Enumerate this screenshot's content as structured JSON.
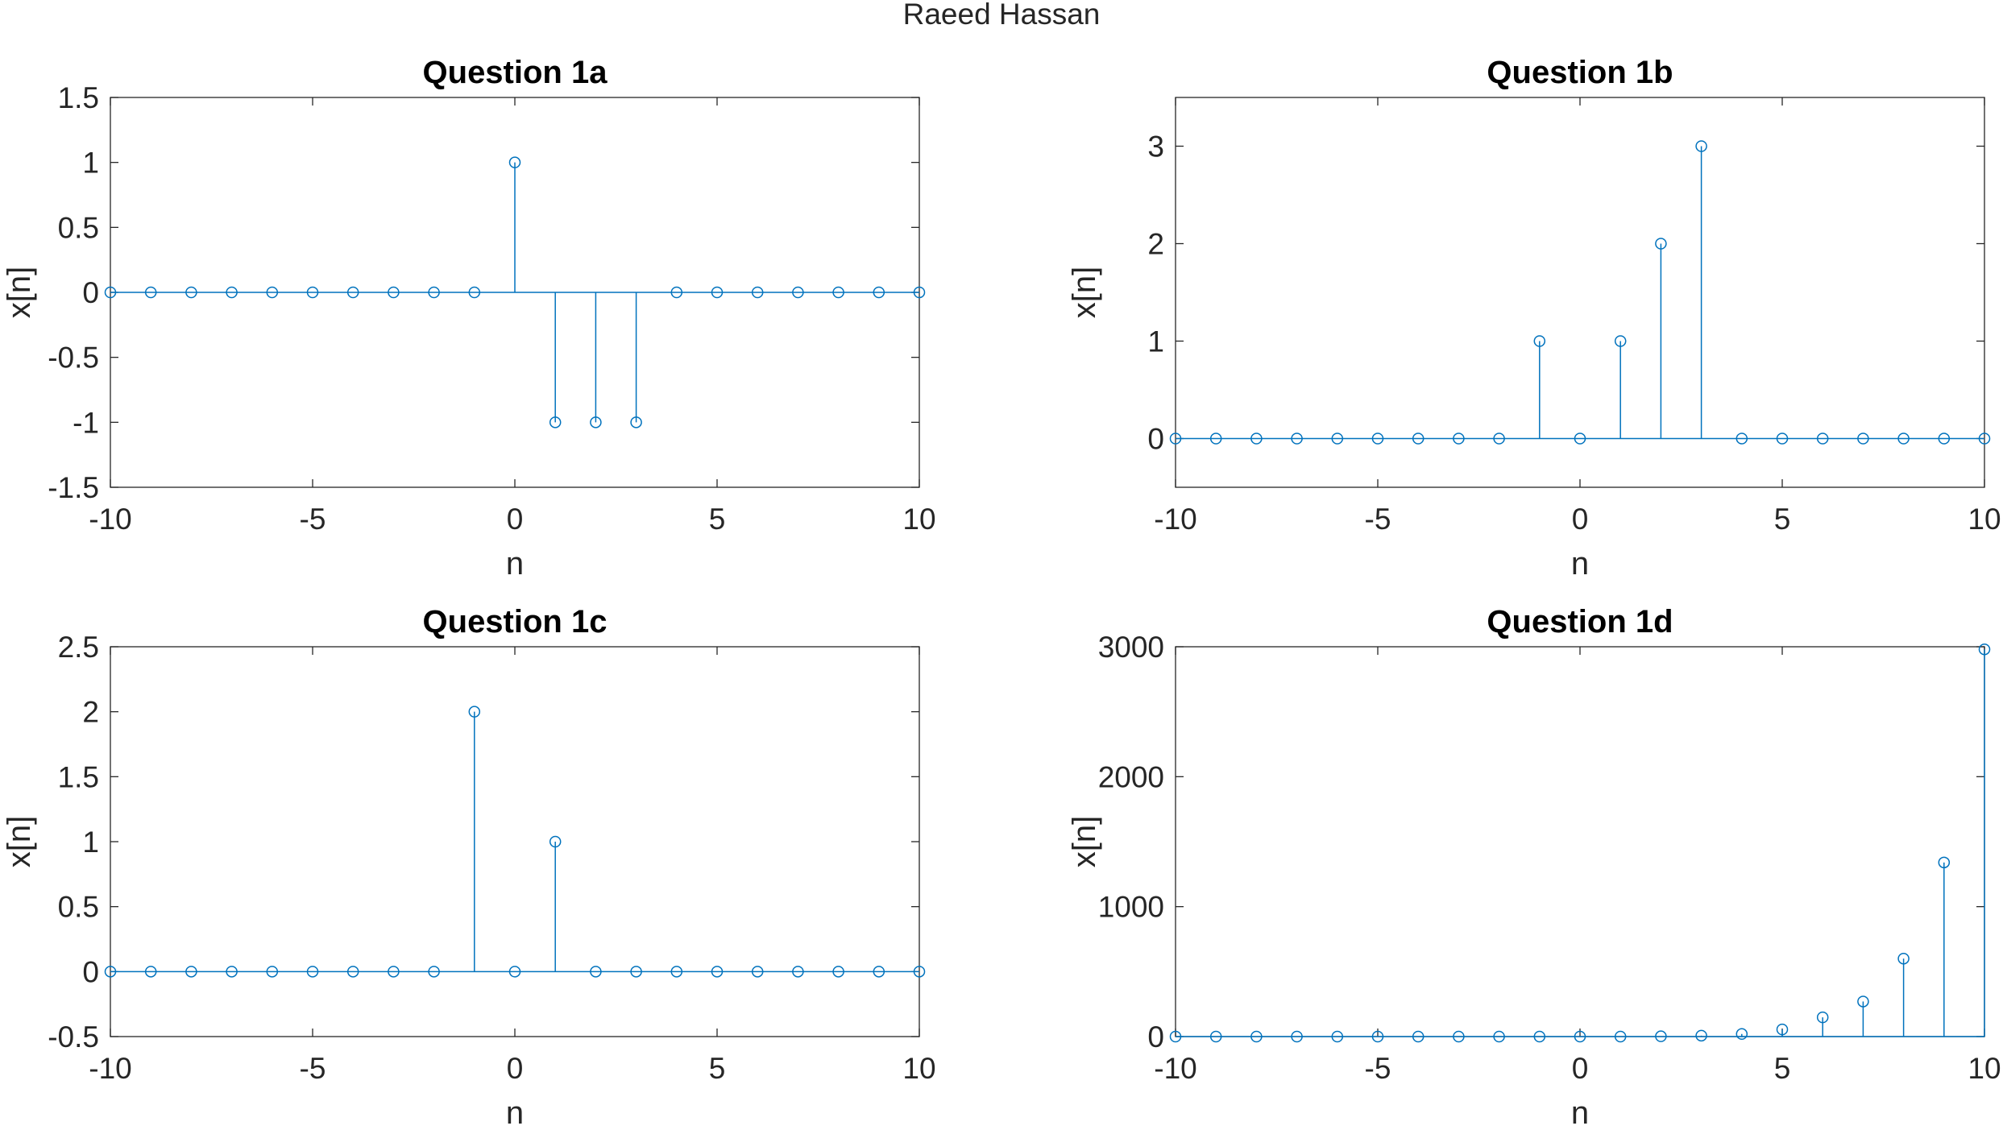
{
  "figure": {
    "title": "Raeed Hassan"
  },
  "chart_data": [
    {
      "type": "stem",
      "title": "Question 1a",
      "xlabel": "n",
      "ylabel": "x[n]",
      "xlim": [
        -10,
        10
      ],
      "ylim": [
        -1.5,
        1.5
      ],
      "xticks": [
        -10,
        -5,
        0,
        5,
        10
      ],
      "yticks": [
        -1.5,
        -1,
        -0.5,
        0,
        0.5,
        1,
        1.5
      ],
      "grid": false,
      "color": "#0072BD",
      "series": [
        {
          "x": [
            -10,
            -9,
            -8,
            -7,
            -6,
            -5,
            -4,
            -3,
            -2,
            -1,
            0,
            1,
            2,
            3,
            4,
            5,
            6,
            7,
            8,
            9,
            10
          ],
          "y": [
            0,
            0,
            0,
            0,
            0,
            0,
            0,
            0,
            0,
            0,
            1,
            -1,
            -1,
            -1,
            0,
            0,
            0,
            0,
            0,
            0,
            0
          ]
        }
      ]
    },
    {
      "type": "stem",
      "title": "Question 1b",
      "xlabel": "n",
      "ylabel": "x[n]",
      "xlim": [
        -10,
        10
      ],
      "ylim": [
        -0.5,
        3.5
      ],
      "xticks": [
        -10,
        -5,
        0,
        5,
        10
      ],
      "yticks": [
        0,
        1,
        2,
        3
      ],
      "grid": false,
      "color": "#0072BD",
      "series": [
        {
          "x": [
            -10,
            -9,
            -8,
            -7,
            -6,
            -5,
            -4,
            -3,
            -2,
            -1,
            0,
            1,
            2,
            3,
            4,
            5,
            6,
            7,
            8,
            9,
            10
          ],
          "y": [
            0,
            0,
            0,
            0,
            0,
            0,
            0,
            0,
            0,
            1,
            0,
            1,
            2,
            3,
            0,
            0,
            0,
            0,
            0,
            0,
            0
          ]
        }
      ]
    },
    {
      "type": "stem",
      "title": "Question 1c",
      "xlabel": "n",
      "ylabel": "x[n]",
      "xlim": [
        -10,
        10
      ],
      "ylim": [
        -0.5,
        2.5
      ],
      "xticks": [
        -10,
        -5,
        0,
        5,
        10
      ],
      "yticks": [
        -0.5,
        0,
        0.5,
        1,
        1.5,
        2,
        2.5
      ],
      "grid": false,
      "color": "#0072BD",
      "series": [
        {
          "x": [
            -10,
            -9,
            -8,
            -7,
            -6,
            -5,
            -4,
            -3,
            -2,
            -1,
            0,
            1,
            2,
            3,
            4,
            5,
            6,
            7,
            8,
            9,
            10
          ],
          "y": [
            0,
            0,
            0,
            0,
            0,
            0,
            0,
            0,
            0,
            2,
            0,
            1,
            0,
            0,
            0,
            0,
            0,
            0,
            0,
            0,
            0
          ]
        }
      ]
    },
    {
      "type": "stem",
      "title": "Question 1d",
      "xlabel": "n",
      "ylabel": "x[n]",
      "xlim": [
        -10,
        10
      ],
      "ylim": [
        0,
        3000
      ],
      "xticks": [
        -10,
        -5,
        0,
        5,
        10
      ],
      "yticks": [
        0,
        1000,
        2000,
        3000
      ],
      "grid": false,
      "color": "#0072BD",
      "series": [
        {
          "x": [
            -10,
            -9,
            -8,
            -7,
            -6,
            -5,
            -4,
            -3,
            -2,
            -1,
            0,
            1,
            2,
            3,
            4,
            5,
            6,
            7,
            8,
            9,
            10
          ],
          "y": [
            0,
            0,
            0,
            0,
            0,
            0,
            0,
            0,
            0,
            0,
            0,
            0,
            2,
            7,
            20,
            55,
            148,
            270,
            600,
            1340,
            2980
          ]
        }
      ]
    }
  ]
}
